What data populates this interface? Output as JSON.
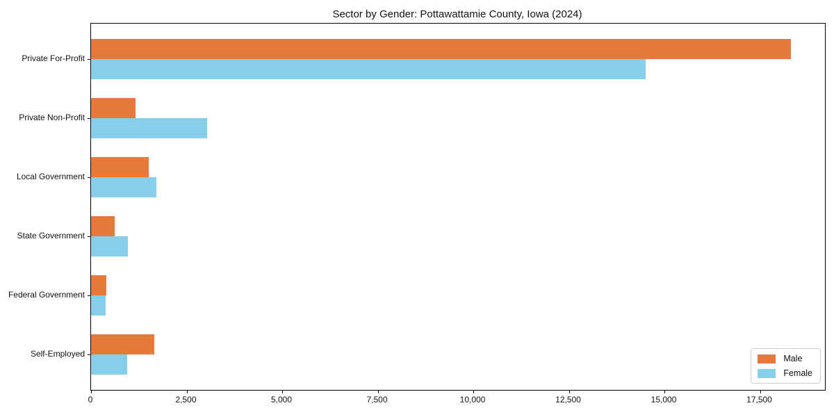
{
  "title": "Sector by Gender: Pottawattamie County, Iowa (2024)",
  "chart_data": {
    "type": "bar",
    "orientation": "horizontal",
    "title": "Sector by Gender: Pottawattamie County, Iowa (2024)",
    "xlabel": "",
    "ylabel": "",
    "categories": [
      "Private For-Profit",
      "Private Non-Profit",
      "Local Government",
      "State Government",
      "Federal Government",
      "Self-Employed"
    ],
    "series": [
      {
        "name": "Male",
        "color": "#e8793d",
        "values": [
          18300,
          1160,
          1510,
          620,
          400,
          1650
        ]
      },
      {
        "name": "Female",
        "color": "#87ceeb",
        "values": [
          14500,
          3040,
          1700,
          960,
          380,
          940
        ]
      }
    ],
    "xlim": [
      0,
      19200
    ],
    "x_ticks": [
      0,
      2500,
      5000,
      7500,
      10000,
      12500,
      15000,
      17500
    ],
    "x_tick_labels": [
      "0",
      "2,500",
      "5,000",
      "7,500",
      "10,000",
      "12,500",
      "15,000",
      "17,500"
    ],
    "grid": false,
    "legend_position": "lower right",
    "colors": {
      "male": "#e8793d",
      "female": "#87ceeb",
      "spine": "#000000",
      "legend_border": "#cccccc"
    }
  }
}
